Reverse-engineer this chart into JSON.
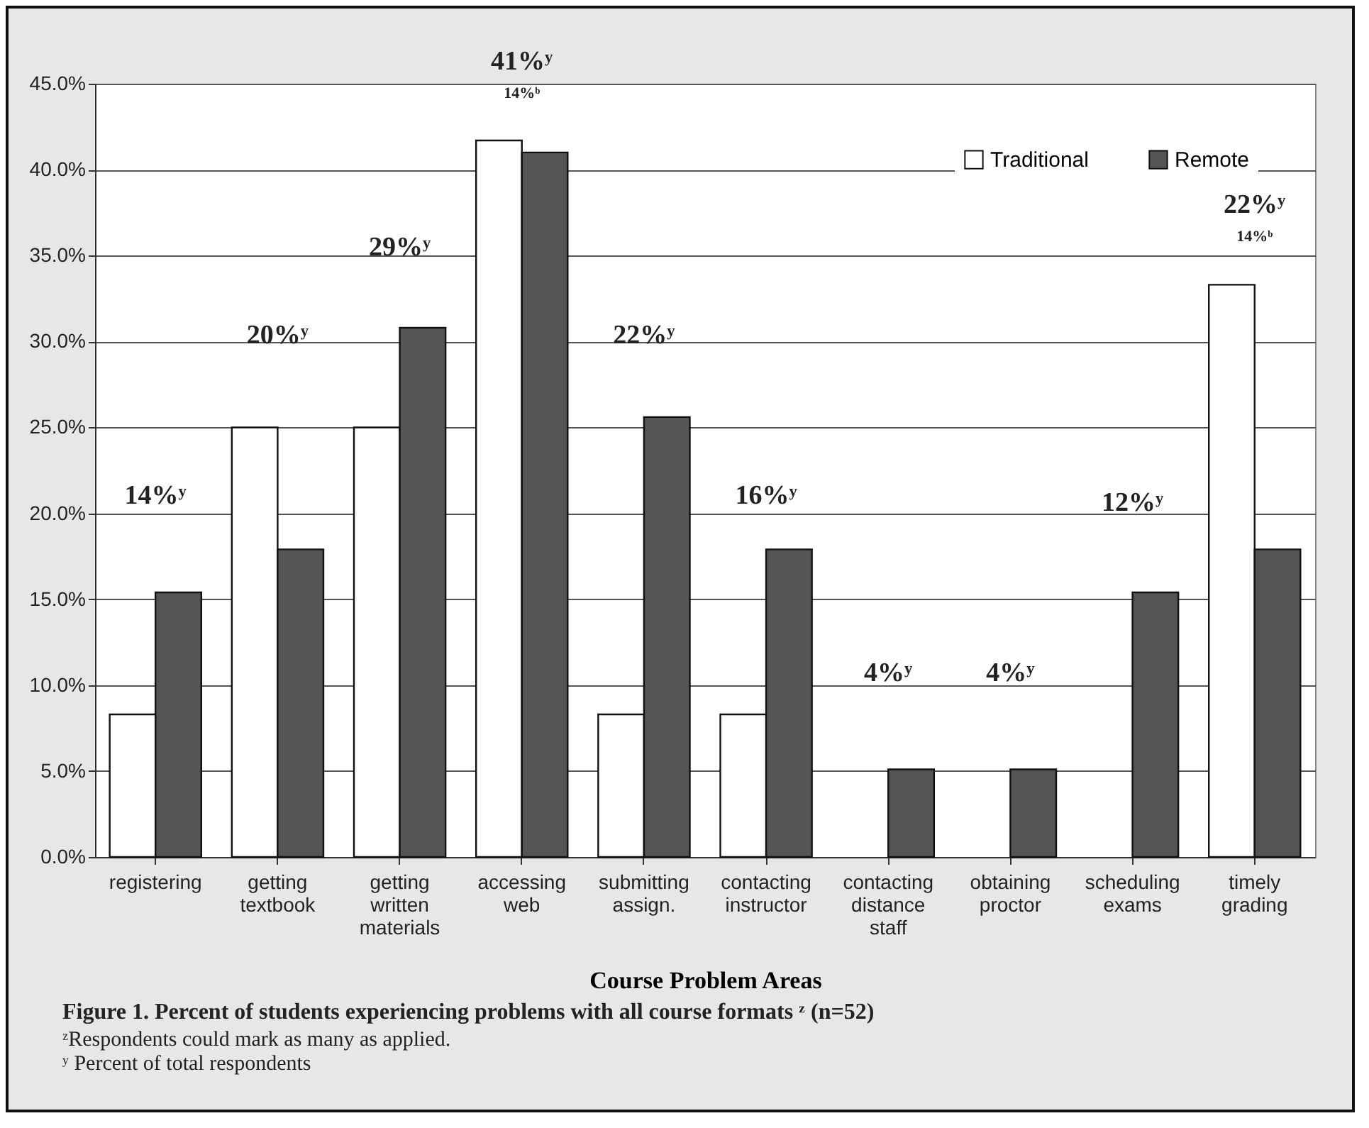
{
  "chart_data": {
    "type": "bar",
    "title": "Figure 1. Percent of students experiencing problems with all course formats ᶻ (n=52)",
    "xlabel": "Course Problem Areas",
    "categories": [
      "registering",
      "getting textbook",
      "getting written materials",
      "accessing web",
      "submitting assign.",
      "contacting instructor",
      "contacting distance staff",
      "obtaining proctor",
      "scheduling exams",
      "timely grading"
    ],
    "series": [
      {
        "name": "Traditional",
        "color": "#ffffff",
        "values": [
          8.3,
          25,
          25,
          41.7,
          8.3,
          8.3,
          0,
          0,
          0,
          33.3
        ]
      },
      {
        "name": "Remote",
        "color": "#555555",
        "values": [
          15.4,
          17.9,
          30.8,
          41,
          25.6,
          17.9,
          5.1,
          5.1,
          15.4,
          17.9
        ]
      }
    ],
    "ylim": [
      0,
      45
    ],
    "yticks": [
      {
        "value": 0,
        "label": "0.0%"
      },
      {
        "value": 5,
        "label": "5.0%"
      },
      {
        "value": 10,
        "label": "10.0%"
      },
      {
        "value": 15,
        "label": "15.0%"
      },
      {
        "value": 20,
        "label": "20.0%"
      },
      {
        "value": 25,
        "label": "25.0%"
      },
      {
        "value": 30,
        "label": "30.0%"
      },
      {
        "value": 35,
        "label": "35.0%"
      },
      {
        "value": 40,
        "label": "40.0%"
      },
      {
        "value": 45,
        "label": "45.0%"
      }
    ],
    "grid": "y",
    "legend": "top right",
    "annotations": [
      "14%ʸ",
      "20%ʸ",
      "29%ʸ",
      "41%ʸ",
      "14%ᵇ",
      "22%ʸ",
      "16%ʸ",
      "4%ʸ",
      "4%ʸ",
      "12%ʸ",
      "22%ʸ",
      "14%ᵇ",
      "ᶻRespondents could mark as many as applied.",
      "ʸ Percent of total respondents"
    ]
  }
}
